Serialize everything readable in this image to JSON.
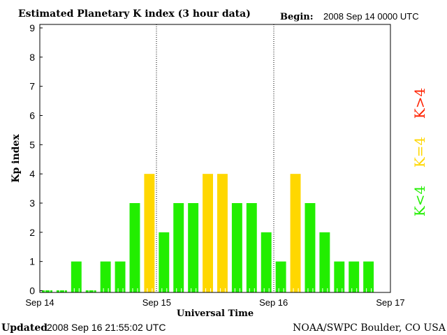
{
  "chart_data": {
    "type": "bar",
    "title": "Estimated Planetary K index (3 hour data)",
    "begin_label": "Begin:",
    "begin_value": "2008 Sep 14 0000 UTC",
    "xlabel": "Universal Time",
    "ylabel": "Kp index",
    "ylim": [
      0,
      9
    ],
    "yticks": [
      "0",
      "1",
      "2",
      "3",
      "4",
      "5",
      "6",
      "7",
      "8",
      "9"
    ],
    "xticks": [
      "Sep 14",
      "Sep 15",
      "Sep 16",
      "Sep 17"
    ],
    "interval_hours": 3,
    "values": [
      0,
      0,
      1,
      0,
      1,
      1,
      3,
      4,
      2,
      3,
      3,
      4,
      4,
      3,
      3,
      2,
      1,
      4,
      3,
      2,
      1,
      1,
      1
    ],
    "legend": [
      {
        "label": "K<4",
        "color": "#22ee00"
      },
      {
        "label": "K=4",
        "color": "#ffd700"
      },
      {
        "label": "K>4",
        "color": "#ff2200"
      }
    ],
    "grid": "vertical dotted day separators"
  },
  "footer": {
    "updated_label": "Updated",
    "updated_value": "2008 Sep 16 21:55:02 UTC",
    "source": "NOAA/SWPC Boulder, CO USA"
  }
}
